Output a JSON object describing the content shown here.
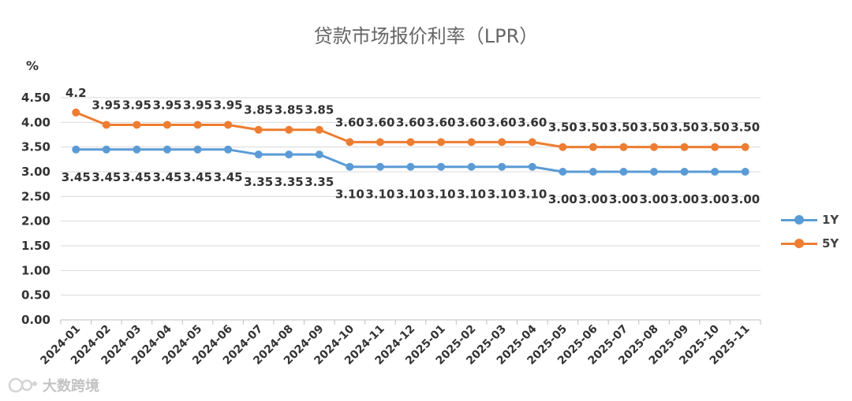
{
  "chart_data": {
    "type": "line",
    "title": "贷款市场报价利率（LPR）",
    "ylabel": "%",
    "ylim": [
      0,
      4.5
    ],
    "yticks": [
      "0.00",
      "0.50",
      "1.00",
      "1.50",
      "2.00",
      "2.50",
      "3.00",
      "3.50",
      "4.00",
      "4.50"
    ],
    "grid": true,
    "legend_position": "right",
    "categories": [
      "2024-01",
      "2024-02",
      "2024-03",
      "2024-04",
      "2024-05",
      "2024-06",
      "2024-07",
      "2024-08",
      "2024-09",
      "2024-10",
      "2024-11",
      "2024-12",
      "2025-01",
      "2025-02",
      "2025-03",
      "2025-04",
      "2025-05",
      "2025-06",
      "2025-07",
      "2025-08",
      "2025-09",
      "2025-10",
      "2025-11"
    ],
    "series": [
      {
        "name": "1Y",
        "color": "#5B9BD5",
        "values": [
          3.45,
          3.45,
          3.45,
          3.45,
          3.45,
          3.45,
          3.35,
          3.35,
          3.35,
          3.1,
          3.1,
          3.1,
          3.1,
          3.1,
          3.1,
          3.1,
          3.0,
          3.0,
          3.0,
          3.0,
          3.0,
          3.0,
          3.0
        ],
        "labels": [
          "3.45",
          "3.45",
          "3.45",
          "3.45",
          "3.45",
          "3.45",
          "3.35",
          "3.35",
          "3.35",
          "3.10",
          "3.10",
          "3.10",
          "3.10",
          "3.10",
          "3.10",
          "3.10",
          "3.00",
          "3.00",
          "3.00",
          "3.00",
          "3.00",
          "3.00",
          "3.00"
        ],
        "label_position": "below"
      },
      {
        "name": "5Y",
        "color": "#ED7D31",
        "values": [
          4.2,
          3.95,
          3.95,
          3.95,
          3.95,
          3.95,
          3.85,
          3.85,
          3.85,
          3.6,
          3.6,
          3.6,
          3.6,
          3.6,
          3.6,
          3.6,
          3.5,
          3.5,
          3.5,
          3.5,
          3.5,
          3.5,
          3.5
        ],
        "labels": [
          "4.2",
          "3.95",
          "3.95",
          "3.95",
          "3.95",
          "3.95",
          "3.85",
          "3.85",
          "3.85",
          "3.60",
          "3.60",
          "3.60",
          "3.60",
          "3.60",
          "3.60",
          "3.60",
          "3.50",
          "3.50",
          "3.50",
          "3.50",
          "3.50",
          "3.50",
          "3.50"
        ],
        "label_position": "above"
      }
    ]
  },
  "watermark": {
    "text": "大数跨境",
    "icon": "watermark-logo-icon"
  }
}
